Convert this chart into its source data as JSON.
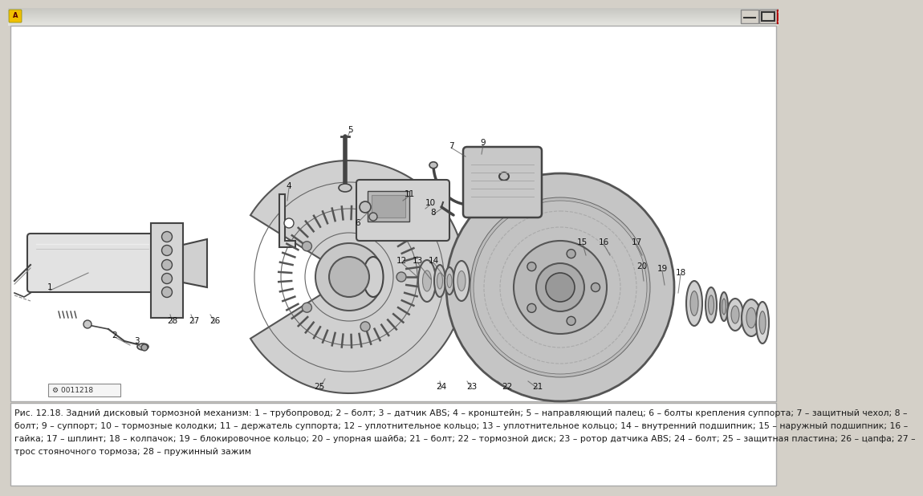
{
  "caption_line1": "Рис. 12.18. Задний дисковый тормозной механизм: 1 – трубопровод; 2 – болт; 3 – датчик ABS; 4 – кронштейн; 5 – направляющий палец; 6 – болты крепления суппорта; 7 – защитный чехол; 8 –",
  "caption_line2": "болт; 9 – суппорт; 10 – тормозные колодки; 11 – держатель суппорта; 12 – уплотнительное кольцо; 13 – уплотнительное кольцо; 14 – внутренний подшипник; 15 – наружный подшипник; 16 –",
  "caption_line3": "гайка; 17 – шплинт; 18 – колпачок; 19 – блокировочное кольцо; 20 – упорная шайба; 21 – болт; 22 – тормозной диск; 23 – ротор датчика ABS; 24 – болт; 25 – защитная пластина; 26 – цапфа; 27 –",
  "caption_line4": "трос стояночного тормоза; 28 – пружинный зажим",
  "window_bg": "#d4d0c8",
  "diagram_bg": "#ffffff",
  "caption_bg": "#ffffff",
  "text_color": "#1a1a1a",
  "caption_fontsize": 7.8,
  "fig_width": 9.6,
  "fig_height": 5.98,
  "titlebar_color": "#d4d0c8",
  "titlebar_gradient_mid": "#e8e6e0",
  "close_btn_color": "#cc0000",
  "gray_line": "#888888",
  "dark_line": "#333333",
  "mid_gray": "#999999",
  "light_gray": "#cccccc",
  "diagram_stroke": "#444444",
  "part_fill": "#d8d8d8",
  "part_fill2": "#c8c8c8",
  "disc_fill": "#c0c0c0",
  "disc_dark": "#a8a8a8"
}
